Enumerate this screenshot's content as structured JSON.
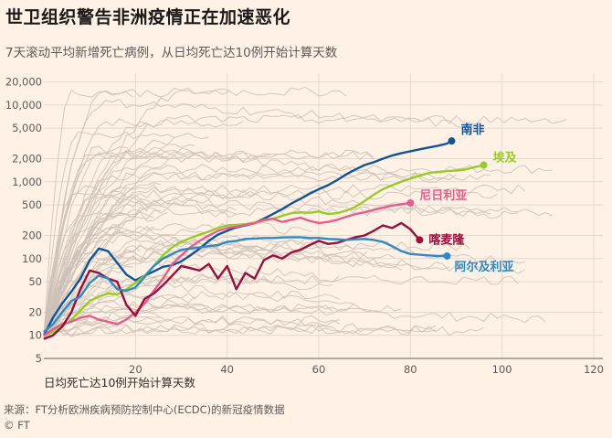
{
  "header": {
    "title": "世卫组织警告非洲疫情正在加速恶化",
    "subtitle": "7天滚动平均新增死亡病例，从日均死亡达10例开始计算天数"
  },
  "footer": {
    "source": "来源：FT分析欧洲疾病预防控制中心(ECDC)的新冠疫情数据",
    "credit": "© FT"
  },
  "chart_data": {
    "type": "line",
    "xlabel": "日均死亡达10例开始计算天数",
    "ylabel": "",
    "y_scale": "log",
    "xlim": [
      0,
      122
    ],
    "ylim": [
      5,
      26000
    ],
    "x_ticks": [
      20,
      40,
      60,
      80,
      100,
      120
    ],
    "y_ticks": [
      5,
      10,
      20,
      50,
      100,
      200,
      500,
      1000,
      2000,
      5000,
      10000,
      20000
    ],
    "y_tick_labels": [
      "5",
      "10",
      "20",
      "50",
      "100",
      "200",
      "500",
      "1,000",
      "2,000",
      "5,000",
      "10,000",
      "20,000"
    ],
    "grid": true,
    "background_series_color": "#ccc1b7",
    "series": [
      {
        "name": "南非",
        "color": "#0f5499",
        "x": [
          0,
          2,
          4,
          6,
          8,
          10,
          12,
          14,
          16,
          18,
          20,
          22,
          24,
          26,
          28,
          30,
          32,
          34,
          36,
          38,
          40,
          42,
          44,
          46,
          48,
          50,
          52,
          54,
          56,
          58,
          60,
          62,
          64,
          66,
          68,
          70,
          72,
          74,
          76,
          78,
          80,
          82,
          84,
          86,
          88,
          89
        ],
        "y": [
          10,
          17,
          26,
          37,
          55,
          95,
          135,
          125,
          88,
          62,
          52,
          60,
          68,
          78,
          82,
          92,
          110,
          135,
          170,
          205,
          230,
          255,
          270,
          290,
          330,
          380,
          440,
          520,
          600,
          700,
          800,
          900,
          1050,
          1250,
          1450,
          1650,
          1800,
          2000,
          2200,
          2350,
          2500,
          2650,
          2800,
          2950,
          3150,
          3400
        ]
      },
      {
        "name": "埃及",
        "color": "#96cc28",
        "x": [
          0,
          2,
          4,
          6,
          8,
          10,
          12,
          14,
          16,
          18,
          20,
          22,
          24,
          26,
          28,
          30,
          32,
          34,
          36,
          38,
          40,
          42,
          44,
          46,
          48,
          50,
          52,
          54,
          56,
          58,
          60,
          62,
          64,
          66,
          68,
          70,
          72,
          74,
          76,
          78,
          80,
          82,
          84,
          86,
          88,
          90,
          92,
          94,
          96
        ],
        "y": [
          10,
          11,
          13,
          16,
          21,
          28,
          32,
          35,
          34,
          40,
          48,
          60,
          80,
          110,
          140,
          165,
          185,
          205,
          225,
          250,
          270,
          275,
          280,
          295,
          310,
          330,
          360,
          390,
          400,
          395,
          410,
          380,
          390,
          420,
          470,
          560,
          680,
          800,
          900,
          1000,
          1100,
          1200,
          1300,
          1350,
          1380,
          1400,
          1450,
          1550,
          1650
        ]
      },
      {
        "name": "尼日利亚",
        "color": "#e95d8c",
        "x": [
          0,
          2,
          4,
          6,
          8,
          10,
          12,
          14,
          16,
          18,
          20,
          22,
          24,
          26,
          28,
          30,
          32,
          34,
          36,
          38,
          40,
          42,
          44,
          46,
          48,
          50,
          52,
          54,
          56,
          58,
          60,
          62,
          64,
          66,
          68,
          70,
          72,
          74,
          76,
          78,
          80
        ],
        "y": [
          10,
          12,
          14,
          15,
          17,
          18,
          16,
          15,
          14,
          16,
          20,
          26,
          38,
          55,
          85,
          110,
          140,
          170,
          200,
          230,
          250,
          260,
          275,
          290,
          320,
          330,
          300,
          320,
          340,
          310,
          290,
          300,
          320,
          350,
          380,
          400,
          430,
          460,
          490,
          510,
          530
        ]
      },
      {
        "name": "喀麦隆",
        "color": "#990f3d",
        "x": [
          0,
          2,
          4,
          6,
          8,
          10,
          12,
          14,
          16,
          18,
          20,
          22,
          24,
          26,
          28,
          30,
          32,
          34,
          36,
          38,
          40,
          42,
          44,
          46,
          48,
          50,
          52,
          54,
          56,
          58,
          60,
          62,
          64,
          66,
          68,
          70,
          72,
          74,
          76,
          78,
          80,
          82
        ],
        "y": [
          9,
          10,
          13,
          20,
          40,
          70,
          65,
          55,
          50,
          25,
          18,
          30,
          35,
          45,
          60,
          80,
          75,
          70,
          85,
          55,
          80,
          40,
          65,
          55,
          95,
          110,
          100,
          120,
          130,
          150,
          170,
          155,
          160,
          175,
          190,
          200,
          230,
          270,
          250,
          290,
          240,
          175
        ]
      },
      {
        "name": "阿尔及利亚",
        "color": "#2e89c6",
        "x": [
          0,
          2,
          4,
          6,
          8,
          10,
          12,
          14,
          16,
          18,
          20,
          22,
          24,
          26,
          28,
          30,
          32,
          34,
          36,
          38,
          40,
          42,
          44,
          46,
          48,
          50,
          52,
          54,
          56,
          58,
          60,
          62,
          64,
          66,
          68,
          70,
          72,
          74,
          76,
          78,
          80,
          82,
          84,
          86,
          88
        ],
        "y": [
          11,
          14,
          20,
          28,
          32,
          48,
          60,
          55,
          40,
          38,
          42,
          58,
          80,
          100,
          115,
          130,
          135,
          140,
          145,
          150,
          165,
          170,
          180,
          182,
          185,
          185,
          188,
          190,
          190,
          185,
          185,
          180,
          178,
          175,
          178,
          180,
          175,
          165,
          145,
          125,
          115,
          112,
          110,
          108,
          108
        ]
      }
    ]
  }
}
